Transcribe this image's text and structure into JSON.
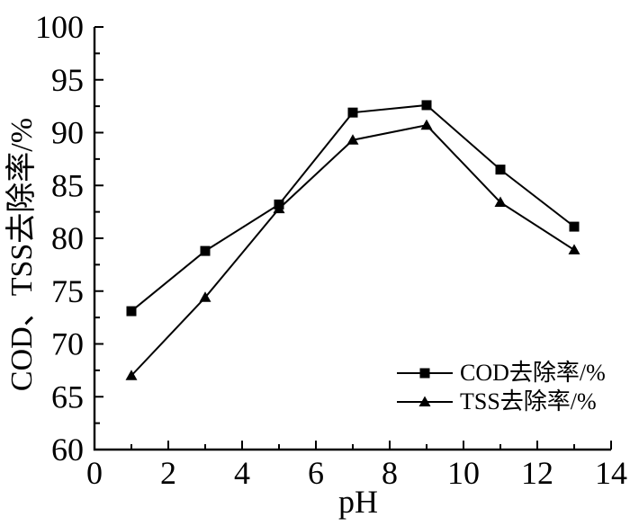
{
  "figure": {
    "xlabel": "pH",
    "ylabel": "COD、TSS去除率/%"
  },
  "legend": {
    "items": [
      {
        "label": "COD去除率/%",
        "marker": "square"
      },
      {
        "label": "TSS去除率/%",
        "marker": "triangle"
      }
    ]
  },
  "chart_data": {
    "type": "line",
    "title": "",
    "xlabel": "pH",
    "ylabel": "COD、TSS去除率/%",
    "x": [
      1,
      3,
      5,
      7,
      9,
      11,
      13
    ],
    "series": [
      {
        "name": "COD去除率/%",
        "marker": "square",
        "color": "#000000",
        "values": [
          73.1,
          78.8,
          83.2,
          91.9,
          92.6,
          86.5,
          81.1
        ]
      },
      {
        "name": "TSS去除率/%",
        "marker": "triangle",
        "color": "#000000",
        "values": [
          67.0,
          74.4,
          82.8,
          89.3,
          90.7,
          83.4,
          78.9
        ]
      }
    ],
    "xlim": [
      0,
      14
    ],
    "ylim": [
      60,
      100
    ],
    "xticks": [
      0,
      2,
      4,
      6,
      8,
      10,
      12,
      14
    ],
    "yticks": [
      60,
      65,
      70,
      75,
      80,
      85,
      90,
      95,
      100
    ],
    "x_minor_step": 1,
    "y_minor_step": 2.5,
    "grid": false,
    "legend_position": "inside-lower-right",
    "axis_color": "#000000",
    "background_color": "#ffffff"
  }
}
